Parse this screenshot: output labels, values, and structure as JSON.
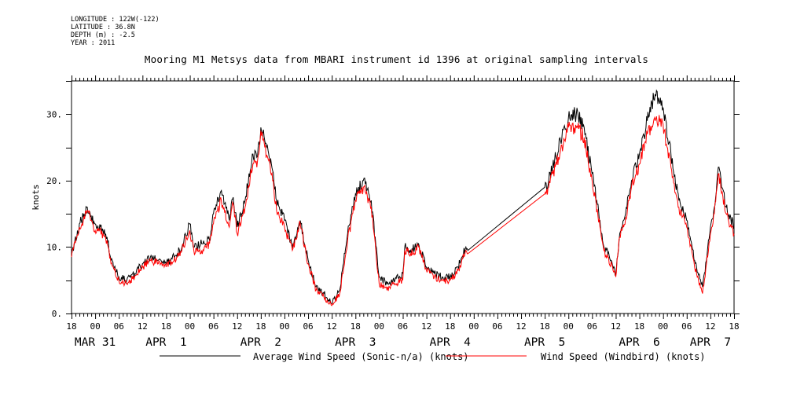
{
  "meta": {
    "longitude": "LONGITUDE : 122W(-122)",
    "latitude": "LATITUDE : 36.8N",
    "depth": "DEPTH (m) : -2.5",
    "year": "YEAR : 2011"
  },
  "chart_data": {
    "type": "line",
    "title": "Mooring M1 Metsys data from MBARI instrument id 1396 at original sampling intervals",
    "ylabel": "knots",
    "xlabel": "",
    "ylim": [
      0,
      35
    ],
    "xlim_hours": [
      0,
      168
    ],
    "ytick_values": [
      0,
      10,
      20,
      30
    ],
    "ytick_labels": [
      "0.",
      "10.",
      "20.",
      "30."
    ],
    "xtick_hour_labels": [
      "18",
      "00",
      "06",
      "12",
      "18",
      "00",
      "06",
      "12",
      "18",
      "00",
      "06",
      "12",
      "18",
      "00",
      "06",
      "12",
      "18",
      "00",
      "06",
      "12",
      "18",
      "00",
      "06",
      "12",
      "18",
      "00",
      "06",
      "12",
      "18"
    ],
    "day_labels": [
      {
        "text": "MAR 31",
        "hour": 6
      },
      {
        "text": "APR  1",
        "hour": 24
      },
      {
        "text": "APR  2",
        "hour": 48
      },
      {
        "text": "APR  3",
        "hour": 72
      },
      {
        "text": "APR  4",
        "hour": 96
      },
      {
        "text": "APR  5",
        "hour": 120
      },
      {
        "text": "APR  6",
        "hour": 144
      },
      {
        "text": "APR  7",
        "hour": 162
      }
    ],
    "x_unit": "hours since MAR 31 18:00",
    "series": [
      {
        "name": "Average Wind Speed (Sonic-n/a) (knots)",
        "color": "#000000",
        "x": [
          0,
          2,
          3,
          4,
          6,
          8,
          9,
          10,
          12,
          14,
          16,
          18,
          20,
          22,
          24,
          26,
          28,
          30,
          31,
          33,
          35,
          36,
          38,
          40,
          41,
          42,
          44,
          46,
          47,
          48,
          49,
          50,
          51,
          52,
          54,
          56,
          58,
          60,
          62,
          64,
          66,
          68,
          70,
          72,
          74,
          76,
          78,
          80,
          82,
          84,
          84.5,
          86,
          88,
          90,
          92,
          94,
          96,
          98,
          100,
          100.5,
          120,
          121,
          122,
          124,
          126,
          128,
          130,
          132,
          134,
          135,
          136,
          138,
          139,
          140,
          142,
          144,
          146,
          148,
          150,
          152,
          154,
          156,
          158,
          160,
          161,
          162,
          163,
          164,
          166,
          168
        ],
        "y": [
          8.5,
          13.5,
          14.5,
          16,
          13.5,
          12.5,
          11.5,
          8,
          5.5,
          5,
          6,
          7.5,
          8.5,
          8,
          7.5,
          8.5,
          10,
          13.5,
          10,
          10.5,
          11,
          15,
          18.5,
          14,
          17.5,
          13,
          17,
          24,
          23.5,
          28,
          26,
          24,
          21.5,
          17,
          14,
          10,
          14,
          8,
          4,
          3,
          1.5,
          3.5,
          12,
          18,
          20,
          17,
          5.5,
          4.5,
          5,
          6,
          10,
          9.5,
          10.5,
          7,
          6,
          5.5,
          5.5,
          7,
          10,
          9.5,
          19,
          20,
          22,
          26,
          29.5,
          30,
          28,
          21,
          14,
          10,
          9,
          6,
          12,
          14,
          20,
          24,
          29,
          33,
          31,
          24,
          17,
          14,
          8,
          4,
          8,
          13,
          16,
          22,
          16,
          13
        ]
      },
      {
        "name": "Wind Speed (Windbird) (knots)",
        "color": "#ff0000",
        "x": [
          0,
          2,
          3,
          4,
          6,
          8,
          9,
          10,
          12,
          14,
          16,
          18,
          20,
          22,
          24,
          26,
          28,
          30,
          31,
          33,
          35,
          36,
          38,
          40,
          41,
          42,
          44,
          46,
          47,
          48,
          49,
          50,
          51,
          52,
          54,
          56,
          58,
          60,
          62,
          64,
          66,
          68,
          70,
          72,
          74,
          76,
          78,
          80,
          82,
          84,
          84.5,
          86,
          88,
          90,
          92,
          94,
          96,
          98,
          100,
          100.5,
          120,
          121,
          122,
          124,
          126,
          128,
          130,
          132,
          134,
          135,
          136,
          138,
          139,
          140,
          142,
          144,
          146,
          148,
          150,
          152,
          154,
          156,
          158,
          160,
          161,
          162,
          163,
          164,
          166,
          168
        ],
        "y": [
          8.5,
          13,
          14,
          15.5,
          12.5,
          12,
          11,
          7.5,
          5,
          4.5,
          5.5,
          7,
          8,
          7.5,
          7,
          8,
          9.5,
          12.5,
          9.5,
          9.5,
          10.5,
          13.5,
          17,
          13,
          16.5,
          12,
          16,
          22.5,
          22,
          27.5,
          25,
          23,
          20,
          15.5,
          13,
          9.5,
          13.5,
          7.5,
          3.5,
          2.5,
          1.2,
          3,
          11,
          17,
          19,
          16,
          4.5,
          3.5,
          4.5,
          5,
          9.5,
          9,
          10,
          6.5,
          5.5,
          5,
          5,
          6.5,
          9.5,
          9,
          18,
          19,
          21,
          24.5,
          28,
          28,
          26.5,
          20,
          13,
          9.5,
          8.5,
          5.5,
          11.5,
          13,
          19,
          22.5,
          27,
          29,
          28.5,
          22,
          16,
          13,
          7,
          3,
          7.5,
          12,
          15,
          21,
          15,
          12
        ]
      }
    ],
    "legend_position": "bottom"
  },
  "legend": {
    "average_label": "Average Wind Speed (Sonic-n/a) (knots)",
    "windbird_label": "Wind Speed (Windbird) (knots)"
  }
}
